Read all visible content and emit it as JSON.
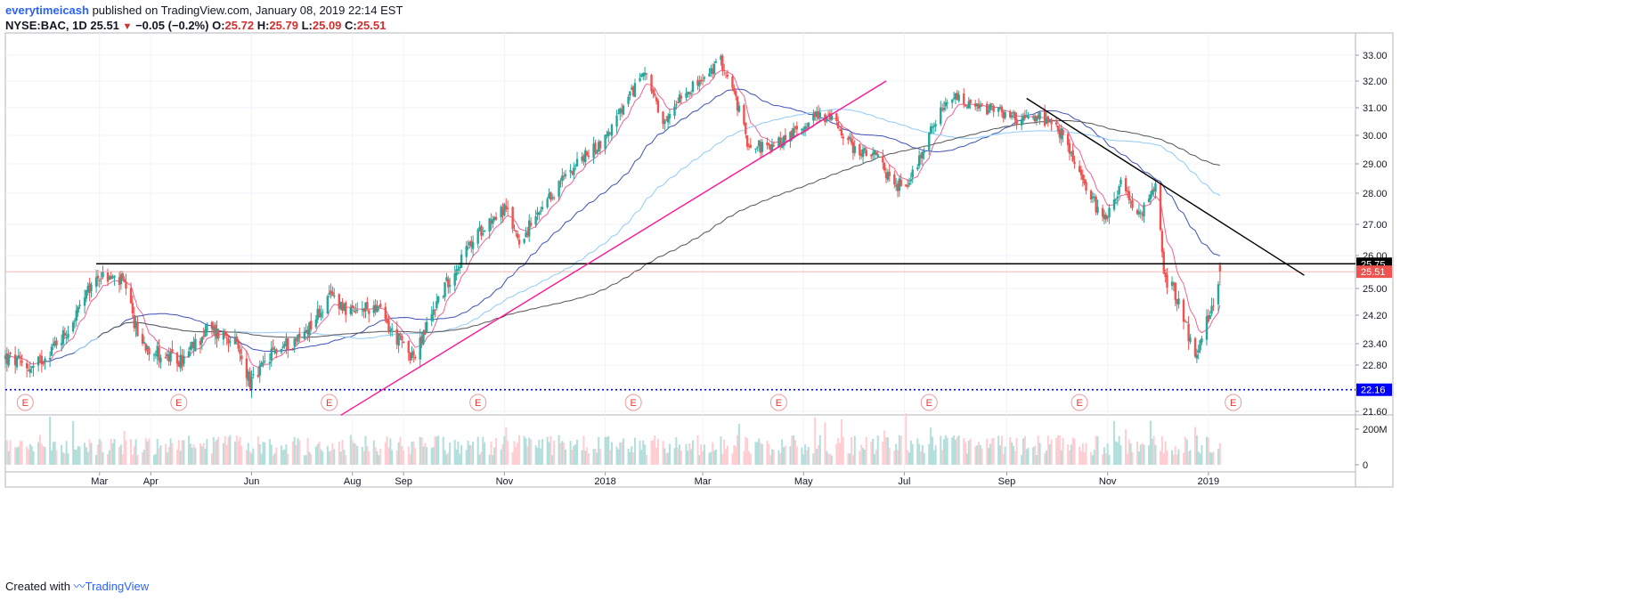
{
  "header": {
    "author": "everytimeicash",
    "published_text": "published on TradingView.com, January 08, 2019 22:14 EST",
    "symbol": "NYSE:BAC, 1D",
    "last": "25.51",
    "change": "−0.05 (−0.2%)",
    "open_label": "O:",
    "open": "25.72",
    "high_label": "H:",
    "high": "25.79",
    "low_label": "L:",
    "low": "25.09",
    "close_label": "C:",
    "close": "25.51"
  },
  "footer": {
    "created_with": "Created with",
    "brand": "TradingView"
  },
  "colors": {
    "up": "#26a69a",
    "down": "#ef5350",
    "ema_fast": "#f06292",
    "sma50": "#3f51b5",
    "sma100": "#90caf9",
    "sma200": "#555555",
    "trendline": "#ff1493",
    "support": "#0000ff",
    "resistance": "#000000",
    "price_tag": "#ef5350",
    "support_tag": "#0000ff"
  },
  "chart_data": {
    "type": "candlestick",
    "symbol": "NYSE:BAC",
    "interval": "1D",
    "x_ticks": [
      "Mar",
      "Apr",
      "Jun",
      "Aug",
      "Sep",
      "Nov",
      "2018",
      "Mar",
      "May",
      "Jul",
      "Sep",
      "Nov",
      "2019"
    ],
    "y_ticks": [
      "33.00",
      "32.00",
      "31.00",
      "30.00",
      "29.00",
      "28.00",
      "27.00",
      "26.00",
      "25.00",
      "24.20",
      "23.40",
      "22.80",
      "21.60"
    ],
    "volume_ticks": [
      "200M",
      "0"
    ],
    "ylim": [
      21.6,
      33.3
    ],
    "price_path": [
      [
        "2017-01-03",
        23.0
      ],
      [
        "2017-01-20",
        22.7
      ],
      [
        "2017-02-10",
        23.8
      ],
      [
        "2017-02-28",
        25.4
      ],
      [
        "2017-03-15",
        25.2
      ],
      [
        "2017-03-25",
        23.5
      ],
      [
        "2017-04-10",
        23.0
      ],
      [
        "2017-04-20",
        22.9
      ],
      [
        "2017-05-05",
        23.8
      ],
      [
        "2017-05-20",
        23.6
      ],
      [
        "2017-06-01",
        22.3
      ],
      [
        "2017-06-15",
        23.2
      ],
      [
        "2017-07-01",
        23.6
      ],
      [
        "2017-07-12",
        24.3
      ],
      [
        "2017-07-20",
        24.8
      ],
      [
        "2017-08-01",
        24.2
      ],
      [
        "2017-08-15",
        24.5
      ],
      [
        "2017-08-25",
        23.7
      ],
      [
        "2017-09-08",
        23.0
      ],
      [
        "2017-09-20",
        24.5
      ],
      [
        "2017-10-01",
        25.5
      ],
      [
        "2017-10-20",
        27.0
      ],
      [
        "2017-11-01",
        27.5
      ],
      [
        "2017-11-10",
        26.5
      ],
      [
        "2017-11-25",
        27.5
      ],
      [
        "2017-12-10",
        28.8
      ],
      [
        "2017-12-31",
        29.8
      ],
      [
        "2018-01-15",
        31.3
      ],
      [
        "2018-01-25",
        32.5
      ],
      [
        "2018-02-05",
        30.2
      ],
      [
        "2018-02-15",
        31.5
      ],
      [
        "2018-03-01",
        32.0
      ],
      [
        "2018-03-12",
        32.8
      ],
      [
        "2018-03-20",
        31.5
      ],
      [
        "2018-03-28",
        29.8
      ],
      [
        "2018-04-10",
        29.5
      ],
      [
        "2018-04-25",
        30.1
      ],
      [
        "2018-05-10",
        30.8
      ],
      [
        "2018-05-20",
        30.5
      ],
      [
        "2018-06-01",
        29.5
      ],
      [
        "2018-06-15",
        29.2
      ],
      [
        "2018-06-25",
        28.2
      ],
      [
        "2018-07-05",
        28.5
      ],
      [
        "2018-07-20",
        30.6
      ],
      [
        "2018-08-01",
        31.4
      ],
      [
        "2018-08-10",
        31.0
      ],
      [
        "2018-08-25",
        30.9
      ],
      [
        "2018-09-10",
        30.5
      ],
      [
        "2018-09-20",
        30.7
      ],
      [
        "2018-10-05",
        30.0
      ],
      [
        "2018-10-20",
        28.0
      ],
      [
        "2018-10-30",
        27.2
      ],
      [
        "2018-11-10",
        28.4
      ],
      [
        "2018-11-20",
        27.2
      ],
      [
        "2018-12-01",
        28.3
      ],
      [
        "2018-12-05",
        25.4
      ],
      [
        "2018-12-15",
        24.6
      ],
      [
        "2018-12-24",
        22.9
      ],
      [
        "2019-01-04",
        24.6
      ],
      [
        "2019-01-08",
        25.51
      ]
    ],
    "indicators": [
      {
        "type": "ema",
        "period": 10,
        "color": "#f06292"
      },
      {
        "type": "sma",
        "period": 50,
        "color": "#3f51b5"
      },
      {
        "type": "sma",
        "period": 100,
        "color": "#90caf9"
      },
      {
        "type": "sma",
        "period": 200,
        "color": "#555555"
      }
    ],
    "drawings": {
      "resistance": {
        "price": 25.75,
        "from": "2017-02-27",
        "to": "2019-02-20",
        "label": "25.75"
      },
      "support": {
        "price": 22.16,
        "label": "22.16"
      },
      "last_price": {
        "price": 25.51,
        "label": "25.51"
      },
      "rising_trendline": {
        "from": [
          "2017-07-25",
          21.5
        ],
        "to": [
          "2018-06-20",
          32.0
        ]
      },
      "falling_trendline": {
        "from": [
          "2018-09-13",
          31.35
        ],
        "to": [
          "2019-02-28",
          25.4
        ]
      }
    },
    "earnings_marker": "E",
    "earnings_dates": [
      "2017-01-15",
      "2017-04-18",
      "2017-07-18",
      "2017-10-16",
      "2018-01-18",
      "2018-04-16",
      "2018-07-16",
      "2018-10-15",
      "2019-01-16"
    ]
  }
}
